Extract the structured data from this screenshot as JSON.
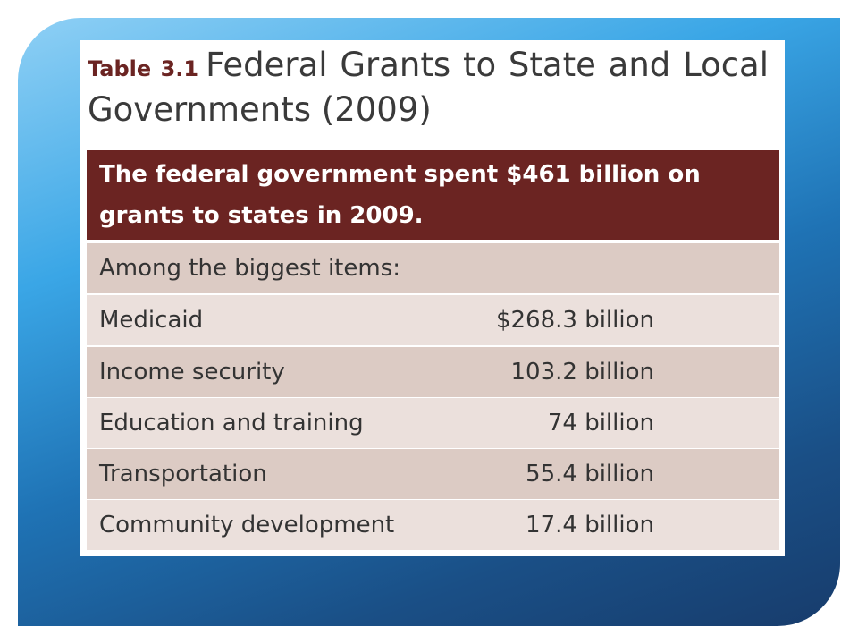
{
  "header": {
    "table_label": "Table 3.1",
    "title": "Federal Grants to State and Local Governments (2009)"
  },
  "table": {
    "caption": "The federal government spent $461 billion on grants to states in 2009.",
    "intro": "Among the biggest items:",
    "rows": [
      {
        "label": "Medicaid",
        "value": "$268.3 billion"
      },
      {
        "label": "Income security",
        "value": "103.2 billion"
      },
      {
        "label": "Education and training",
        "value": "74 billion"
      },
      {
        "label": "Transportation",
        "value": "55.4 billion"
      },
      {
        "label": "Community development",
        "value": "17.4 billion"
      }
    ]
  }
}
